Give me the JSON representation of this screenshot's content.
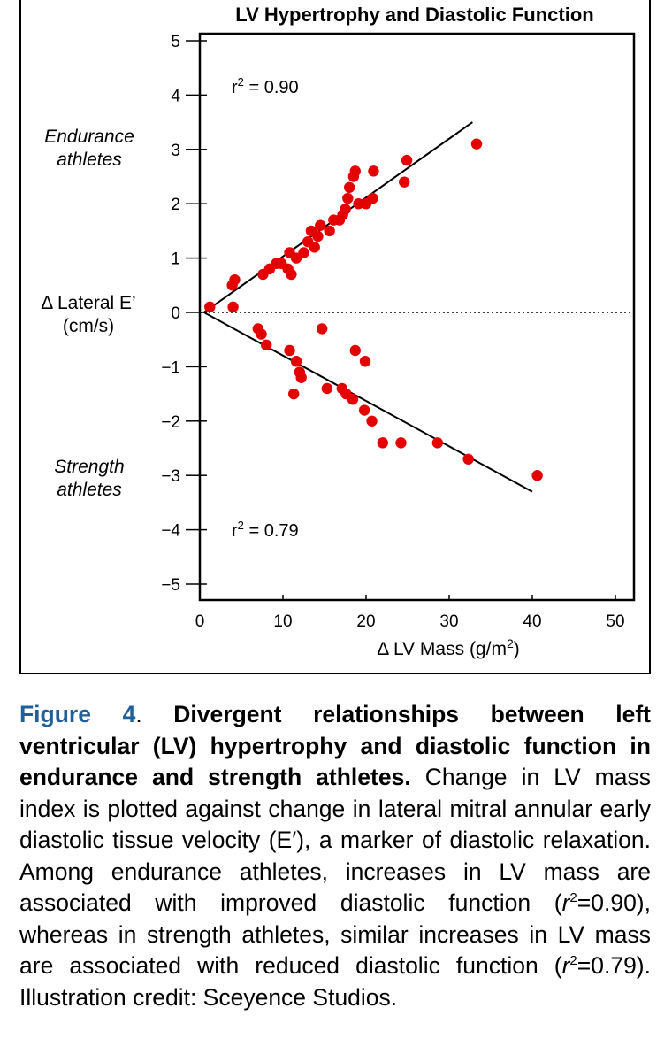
{
  "chart_data": {
    "type": "scatter",
    "title": "LV Hypertrophy and Diastolic Function",
    "xlabel": "Δ LV Mass (g/m",
    "xlabel_sup": "2",
    "xlabel_end": ")",
    "ylabel_line1": "Δ Lateral E’",
    "ylabel_line2": "(cm/s)",
    "xlim": [
      0,
      50
    ],
    "ylim": [
      -5,
      5
    ],
    "xticks": [
      "0",
      "10",
      "20",
      "30",
      "40",
      "50"
    ],
    "yticks": [
      "5",
      "4",
      "3",
      "2",
      "1",
      "0",
      "−1",
      "−2",
      "−3",
      "−4",
      "−5"
    ],
    "zero_line": "dotted",
    "series": [
      {
        "name": "Endurance athletes",
        "group_label_line1": "Endurance",
        "group_label_line2": "athletes",
        "r2_label": "r",
        "r2_sup": "2",
        "r2_value": " = 0.90",
        "color": "#e50000",
        "points": [
          [
            1.2,
            0.1
          ],
          [
            4.0,
            0.1
          ],
          [
            3.9,
            0.5
          ],
          [
            4.2,
            0.6
          ],
          [
            7.6,
            0.7
          ],
          [
            8.4,
            0.8
          ],
          [
            9.2,
            0.9
          ],
          [
            9.8,
            0.9
          ],
          [
            10.6,
            0.8
          ],
          [
            11.0,
            0.7
          ],
          [
            10.8,
            1.1
          ],
          [
            11.6,
            1.0
          ],
          [
            12.5,
            1.1
          ],
          [
            13.0,
            1.3
          ],
          [
            13.4,
            1.5
          ],
          [
            13.8,
            1.2
          ],
          [
            14.2,
            1.4
          ],
          [
            14.5,
            1.6
          ],
          [
            15.6,
            1.5
          ],
          [
            16.1,
            1.7
          ],
          [
            16.8,
            1.7
          ],
          [
            17.2,
            1.8
          ],
          [
            17.5,
            1.9
          ],
          [
            17.8,
            2.1
          ],
          [
            18.0,
            2.3
          ],
          [
            18.5,
            2.5
          ],
          [
            18.7,
            2.6
          ],
          [
            19.1,
            2.0
          ],
          [
            20.0,
            2.0
          ],
          [
            20.8,
            2.1
          ],
          [
            20.9,
            2.6
          ],
          [
            24.6,
            2.4
          ],
          [
            24.9,
            2.8
          ],
          [
            33.3,
            3.1
          ]
        ],
        "fit": [
          [
            0.5,
            0.0
          ],
          [
            32.8,
            3.5
          ]
        ]
      },
      {
        "name": "Strength athletes",
        "group_label_line1": "Strength",
        "group_label_line2": "athletes",
        "r2_label": "r",
        "r2_sup": "2",
        "r2_value": " = 0.79",
        "color": "#e50000",
        "points": [
          [
            7.0,
            -0.3
          ],
          [
            7.4,
            -0.4
          ],
          [
            8.0,
            -0.6
          ],
          [
            10.8,
            -0.7
          ],
          [
            11.6,
            -0.9
          ],
          [
            11.3,
            -1.5
          ],
          [
            12.0,
            -1.1
          ],
          [
            12.2,
            -1.2
          ],
          [
            14.7,
            -0.3
          ],
          [
            15.3,
            -1.4
          ],
          [
            17.1,
            -1.4
          ],
          [
            17.6,
            -1.5
          ],
          [
            18.4,
            -1.6
          ],
          [
            18.7,
            -0.7
          ],
          [
            19.9,
            -0.9
          ],
          [
            19.8,
            -1.8
          ],
          [
            20.7,
            -2.0
          ],
          [
            22.0,
            -2.4
          ],
          [
            24.2,
            -2.4
          ],
          [
            28.6,
            -2.4
          ],
          [
            32.3,
            -2.7
          ],
          [
            40.6,
            -3.0
          ]
        ],
        "fit": [
          [
            0.5,
            0.0
          ],
          [
            40.0,
            -3.3
          ]
        ]
      }
    ]
  },
  "caption": {
    "figure_number": "Figure 4",
    "period": ". ",
    "bold_text": "Divergent relationships between left ventricular (LV) hypertrophy and diastolic function in endurance and strength athletes.",
    "body_1": " Change in LV mass index is plotted against change in lateral mitral annular early diastolic tissue velocity (E′), a marker of diastolic relaxation. Among endurance athletes, increases in LV mass are associated with improved diastolic function (",
    "r_1": "r",
    "r2_1": "=0.90), whereas in strength athletes, similar increases in LV mass are associated with reduced diastolic function (",
    "r_2": "r",
    "r2_2": "=0.79). Illustration credit: Sceyence Studios.",
    "sup": "2"
  }
}
